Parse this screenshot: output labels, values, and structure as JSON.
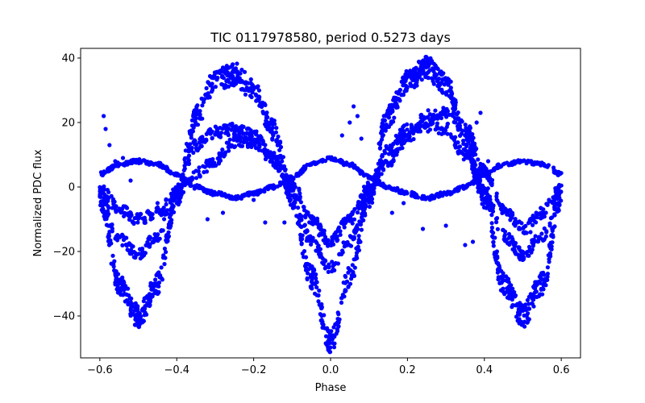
{
  "chart_data": {
    "type": "scatter",
    "title": "TIC 0117978580, period 0.5273 days",
    "xlabel": "Phase",
    "ylabel": "Normalized PDC flux",
    "xlim": [
      -0.65,
      0.65
    ],
    "ylim": [
      -53,
      43
    ],
    "xticks": [
      -0.6,
      -0.4,
      -0.2,
      0.0,
      0.2,
      0.4,
      0.6
    ],
    "xtick_labels": [
      "−0.6",
      "−0.4",
      "−0.2",
      "0.0",
      "0.2",
      "0.4",
      "0.6"
    ],
    "yticks": [
      -40,
      -20,
      0,
      20,
      40
    ],
    "ytick_labels": [
      "−40",
      "−20",
      "0",
      "20",
      "40"
    ],
    "grid": false,
    "marker_color": "#0000ff",
    "series": [
      {
        "x": [
          -0.6,
          -0.55,
          -0.5,
          -0.45,
          -0.4,
          -0.35,
          -0.3,
          -0.25,
          -0.2,
          -0.15,
          -0.1,
          -0.05,
          0.0,
          0.05,
          0.1,
          0.15,
          0.2,
          0.25,
          0.3,
          0.35,
          0.4,
          0.45,
          0.5,
          0.55,
          0.6
        ],
        "y": [
          -3,
          -30,
          -40,
          -30,
          -3,
          22,
          33,
          35,
          30,
          18,
          -3,
          -28,
          -48,
          -28,
          -3,
          22,
          33,
          37,
          32,
          15,
          -3,
          -30,
          -40,
          -30,
          -3
        ]
      },
      {
        "x": [
          -0.6,
          -0.55,
          -0.5,
          -0.45,
          -0.4,
          -0.35,
          -0.3,
          -0.25,
          -0.2,
          -0.15,
          -0.1,
          -0.05,
          0.0,
          0.05,
          0.1,
          0.15,
          0.2,
          0.25,
          0.3,
          0.35,
          0.4,
          0.45,
          0.5,
          0.55,
          0.6
        ],
        "y": [
          -2,
          -16,
          -21,
          -15,
          -1,
          13,
          17,
          18,
          16,
          9,
          -2,
          -17,
          -25,
          -17,
          -2,
          12,
          18,
          19,
          18,
          10,
          -1,
          -15,
          -21,
          -15,
          -2
        ]
      },
      {
        "x": [
          -0.6,
          -0.55,
          -0.5,
          -0.45,
          -0.4,
          -0.35,
          -0.3,
          -0.25,
          -0.2,
          -0.15,
          -0.1,
          -0.05,
          0.0,
          0.05,
          0.1,
          0.15,
          0.2,
          0.25,
          0.3,
          0.35,
          0.4,
          0.45,
          0.5,
          0.55,
          0.6
        ],
        "y": [
          0,
          -7,
          -10,
          -8,
          -2,
          4,
          8,
          14,
          14,
          8,
          1,
          -10,
          -17,
          -10,
          0,
          8,
          15,
          22,
          23,
          19,
          5,
          -7,
          -13,
          -8,
          0
        ]
      },
      {
        "x": [
          -0.6,
          -0.55,
          -0.5,
          -0.45,
          -0.4,
          -0.35,
          -0.3,
          -0.25,
          -0.2,
          -0.15,
          -0.1,
          -0.05,
          0.0,
          0.05,
          0.1,
          0.15,
          0.2,
          0.25,
          0.3,
          0.35,
          0.4,
          0.45,
          0.5,
          0.55,
          0.6
        ],
        "y": [
          4,
          7,
          8,
          7,
          4,
          0,
          -2,
          -3.5,
          -2,
          0,
          3,
          7,
          9,
          7,
          3,
          0,
          -2,
          -3.5,
          -2,
          0,
          4,
          7,
          8,
          7,
          4
        ]
      },
      {
        "x": [
          -0.59,
          -0.585,
          -0.575,
          -0.56,
          -0.54,
          -0.52,
          -0.45,
          -0.42,
          -0.35,
          -0.32,
          -0.28,
          -0.2,
          -0.17,
          -0.12,
          -0.08,
          -0.03,
          0.03,
          0.05,
          0.06,
          0.07,
          0.08,
          0.12,
          0.16,
          0.19,
          0.24,
          0.3,
          0.35,
          0.37,
          0.38,
          0.39,
          0.41,
          0.48,
          0.52,
          0.56,
          0.58
        ],
        "y": [
          22,
          18,
          13,
          8,
          9,
          2,
          -5,
          -12,
          5,
          -10,
          -8,
          -4,
          -11,
          -11,
          -2,
          -15,
          16,
          20,
          25,
          22,
          15,
          5,
          -8,
          -5,
          -13,
          -12,
          -18,
          -17,
          20,
          23,
          8,
          -12,
          -14,
          -8,
          6
        ]
      }
    ]
  }
}
